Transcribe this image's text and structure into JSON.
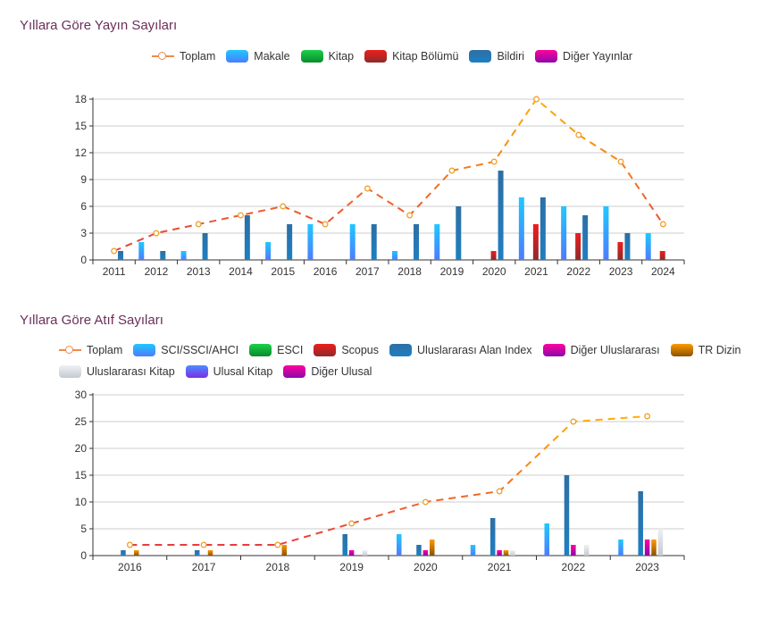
{
  "chart_data": [
    {
      "type": "bar",
      "title": "Yıllara Göre Yayın Sayıları",
      "xlabel": "",
      "ylabel": "",
      "ylim": [
        0,
        18
      ],
      "yticks": [
        0,
        3,
        6,
        9,
        12,
        15,
        18
      ],
      "grid": true,
      "legend_position": "top-center",
      "categories": [
        "2011",
        "2012",
        "2013",
        "2014",
        "2015",
        "2016",
        "2017",
        "2018",
        "2019",
        "2020",
        "2021",
        "2022",
        "2023",
        "2024"
      ],
      "line_series": {
        "name": "Toplam",
        "values": [
          1,
          3,
          4,
          5,
          6,
          4,
          8,
          5,
          10,
          11,
          18,
          14,
          11,
          4
        ]
      },
      "series": [
        {
          "name": "Makale",
          "color": "#1fc8ff",
          "color2": "#4d7cff",
          "values": [
            0,
            2,
            1,
            0,
            2,
            4,
            4,
            1,
            4,
            0,
            7,
            6,
            6,
            3
          ]
        },
        {
          "name": "Kitap",
          "color": "#1bd14a",
          "color2": "#0a8a2c",
          "values": [
            0,
            0,
            0,
            0,
            0,
            0,
            0,
            0,
            0,
            0,
            0,
            0,
            0,
            0
          ]
        },
        {
          "name": "Kitap Bölümü",
          "color": "#ee1d1d",
          "color2": "#8e2a2a",
          "values": [
            0,
            0,
            0,
            0,
            0,
            0,
            0,
            0,
            0,
            1,
            4,
            3,
            2,
            1
          ]
        },
        {
          "name": "Bildiri",
          "color": "#2d6fa5",
          "color2": "#1f7fc1",
          "values": [
            1,
            1,
            3,
            5,
            4,
            0,
            4,
            4,
            6,
            10,
            7,
            5,
            3,
            0
          ]
        },
        {
          "name": "Diğer Yayınlar",
          "color": "#ff00a0",
          "color2": "#8a0aa8",
          "values": [
            0,
            0,
            0,
            0,
            0,
            0,
            0,
            0,
            0,
            0,
            0,
            0,
            0,
            0
          ]
        }
      ]
    },
    {
      "type": "bar",
      "title": "Yıllara Göre Atıf Sayıları",
      "xlabel": "",
      "ylabel": "",
      "ylim": [
        0,
        30
      ],
      "yticks": [
        0,
        5,
        10,
        15,
        20,
        25,
        30
      ],
      "grid": true,
      "legend_position": "top-center",
      "categories": [
        "2016",
        "2017",
        "2018",
        "2019",
        "2020",
        "2021",
        "2022",
        "2023"
      ],
      "line_series": {
        "name": "Toplam",
        "values": [
          2,
          2,
          2,
          6,
          10,
          12,
          25,
          26
        ]
      },
      "series": [
        {
          "name": "SCI/SSCI/AHCI",
          "color": "#1fc8ff",
          "color2": "#4d7cff",
          "values": [
            0,
            0,
            0,
            0,
            4,
            2,
            6,
            3
          ]
        },
        {
          "name": "ESCI",
          "color": "#1bd14a",
          "color2": "#0a8a2c",
          "values": [
            0,
            0,
            0,
            0,
            0,
            0,
            0,
            0
          ]
        },
        {
          "name": "Scopus",
          "color": "#ee1d1d",
          "color2": "#8e2a2a",
          "values": [
            0,
            0,
            0,
            0,
            0,
            0,
            0,
            0
          ]
        },
        {
          "name": "Uluslararası Alan Index",
          "color": "#2d6fa5",
          "color2": "#1f7fc1",
          "values": [
            1,
            1,
            0,
            4,
            2,
            7,
            15,
            12
          ]
        },
        {
          "name": "Diğer Uluslararası",
          "color": "#ff00a0",
          "color2": "#8a0aa8",
          "values": [
            0,
            0,
            0,
            1,
            1,
            1,
            2,
            3
          ]
        },
        {
          "name": "TR Dizin",
          "color": "#ff9900",
          "color2": "#8a5200",
          "values": [
            1,
            1,
            2,
            0,
            3,
            1,
            0,
            3
          ]
        },
        {
          "name": "Uluslararası Kitap",
          "color": "#eef0f4",
          "color2": "#c4c9d2",
          "values": [
            0,
            0,
            0,
            1,
            0,
            1,
            2,
            5
          ]
        },
        {
          "name": "Ulusal Kitap",
          "color": "#4d8dff",
          "color2": "#7a2ee6",
          "values": [
            0,
            0,
            0,
            0,
            0,
            0,
            0,
            0
          ]
        },
        {
          "name": "Diğer Ulusal",
          "color": "#ff00a0",
          "color2": "#8a0aa8",
          "values": [
            0,
            0,
            0,
            0,
            0,
            0,
            0,
            0
          ]
        }
      ]
    }
  ]
}
